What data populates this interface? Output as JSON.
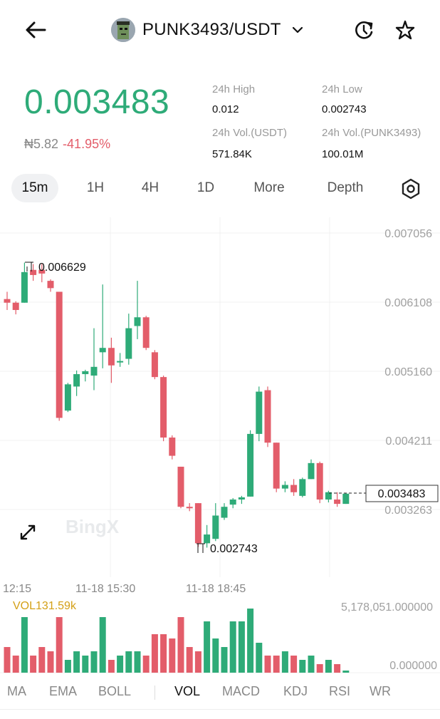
{
  "header": {
    "pair": "PUNK3493/USDT",
    "icons": [
      "back-arrow-icon",
      "avatar",
      "chevron-down-icon",
      "refresh-icon",
      "star-icon"
    ]
  },
  "ticker": {
    "price": "0.003483",
    "fiat": "₦5.82",
    "change": "-41.95%",
    "high_label": "24h High",
    "high": "0.012",
    "low_label": "24h Low",
    "low": "0.002743",
    "vol_usdt_label": "24h Vol.(USDT)",
    "vol_usdt": "571.84K",
    "vol_base_label": "24h Vol.(PUNK3493)",
    "vol_base": "100.01M"
  },
  "tabs": [
    "15m",
    "1H",
    "4H",
    "1D",
    "More",
    "Depth"
  ],
  "active_tab": "15m",
  "chart": {
    "watermark": "BingX",
    "price_labels": [
      "0.007056",
      "0.006108",
      "0.005160",
      "0.004211",
      "0.003263"
    ],
    "current_price": "0.003483",
    "max_label": "0.006629",
    "min_label": "0.002743",
    "x_labels": [
      "12:15",
      "11-18 15:30",
      "11-18 18:45"
    ],
    "vol_label": "VOL131.59k",
    "vol_max": "5,178,051.000000",
    "vol_min": "0.000000"
  },
  "indicators": [
    "MA",
    "EMA",
    "BOLL",
    "VOL",
    "MACD",
    "KDJ",
    "RSI",
    "WR"
  ],
  "active_indicator": "VOL",
  "colors": {
    "up": "#2eab78",
    "down": "#e35d6a",
    "muted": "#888888",
    "vol_label": "#d4a017"
  },
  "chart_data": {
    "type": "candlestick",
    "ylim": [
      0.0027,
      0.00715
    ],
    "candles": [
      {
        "o": 0.00615,
        "h": 0.00625,
        "l": 0.006,
        "c": 0.0061
      },
      {
        "o": 0.0061,
        "h": 0.00612,
        "l": 0.00594,
        "c": 0.006
      },
      {
        "o": 0.0061,
        "h": 0.00665,
        "l": 0.0061,
        "c": 0.00652
      },
      {
        "o": 0.00655,
        "h": 0.00663,
        "l": 0.0064,
        "c": 0.00648
      },
      {
        "o": 0.00655,
        "h": 0.00663,
        "l": 0.00638,
        "c": 0.0065
      },
      {
        "o": 0.0064,
        "h": 0.00642,
        "l": 0.00625,
        "c": 0.0063
      },
      {
        "o": 0.00625,
        "h": 0.00625,
        "l": 0.00448,
        "c": 0.00452
      },
      {
        "o": 0.00462,
        "h": 0.005,
        "l": 0.0046,
        "c": 0.00498
      },
      {
        "o": 0.00495,
        "h": 0.00517,
        "l": 0.00482,
        "c": 0.00512
      },
      {
        "o": 0.00512,
        "h": 0.00518,
        "l": 0.00502,
        "c": 0.00516
      },
      {
        "o": 0.0051,
        "h": 0.00575,
        "l": 0.0049,
        "c": 0.00522
      },
      {
        "o": 0.00542,
        "h": 0.00635,
        "l": 0.0052,
        "c": 0.00548
      },
      {
        "o": 0.00548,
        "h": 0.00562,
        "l": 0.005,
        "c": 0.00524
      },
      {
        "o": 0.00528,
        "h": 0.00541,
        "l": 0.00522,
        "c": 0.0053
      },
      {
        "o": 0.00533,
        "h": 0.00595,
        "l": 0.00525,
        "c": 0.00575
      },
      {
        "o": 0.00578,
        "h": 0.0064,
        "l": 0.0056,
        "c": 0.0059
      },
      {
        "o": 0.0059,
        "h": 0.00592,
        "l": 0.00545,
        "c": 0.00548
      },
      {
        "o": 0.00542,
        "h": 0.00545,
        "l": 0.00505,
        "c": 0.00508
      },
      {
        "o": 0.00508,
        "h": 0.0051,
        "l": 0.0042,
        "c": 0.00425
      },
      {
        "o": 0.00425,
        "h": 0.00428,
        "l": 0.00395,
        "c": 0.004
      },
      {
        "o": 0.00385,
        "h": 0.00385,
        "l": 0.00328,
        "c": 0.0033
      },
      {
        "o": 0.0033,
        "h": 0.00335,
        "l": 0.00324,
        "c": 0.00328
      },
      {
        "o": 0.00335,
        "h": 0.00335,
        "l": 0.00275,
        "c": 0.0028
      },
      {
        "o": 0.0028,
        "h": 0.00305,
        "l": 0.00274,
        "c": 0.00292
      },
      {
        "o": 0.00286,
        "h": 0.00335,
        "l": 0.00283,
        "c": 0.00318
      },
      {
        "o": 0.00315,
        "h": 0.00335,
        "l": 0.00312,
        "c": 0.0033
      },
      {
        "o": 0.00333,
        "h": 0.00342,
        "l": 0.00328,
        "c": 0.0034
      },
      {
        "o": 0.0034,
        "h": 0.00345,
        "l": 0.00334,
        "c": 0.00343
      },
      {
        "o": 0.00344,
        "h": 0.00435,
        "l": 0.00344,
        "c": 0.0043
      },
      {
        "o": 0.0043,
        "h": 0.00495,
        "l": 0.0042,
        "c": 0.00488
      },
      {
        "o": 0.0049,
        "h": 0.00495,
        "l": 0.00412,
        "c": 0.00418
      },
      {
        "o": 0.00418,
        "h": 0.00418,
        "l": 0.0035,
        "c": 0.00355
      },
      {
        "o": 0.00355,
        "h": 0.00365,
        "l": 0.0035,
        "c": 0.0036
      },
      {
        "o": 0.0036,
        "h": 0.00368,
        "l": 0.00345,
        "c": 0.0035
      },
      {
        "o": 0.00345,
        "h": 0.0037,
        "l": 0.00343,
        "c": 0.00368
      },
      {
        "o": 0.00368,
        "h": 0.00395,
        "l": 0.00368,
        "c": 0.0039
      },
      {
        "o": 0.0039,
        "h": 0.00392,
        "l": 0.00335,
        "c": 0.0034
      },
      {
        "o": 0.0034,
        "h": 0.00352,
        "l": 0.00336,
        "c": 0.0035
      },
      {
        "o": 0.0034,
        "h": 0.0035,
        "l": 0.0033,
        "c": 0.00334
      },
      {
        "o": 0.00334,
        "h": 0.00349,
        "l": 0.00334,
        "c": 0.00348
      }
    ],
    "volume": [
      0.6,
      0.4,
      1.3,
      0.4,
      0.6,
      0.5,
      1.3,
      0.3,
      0.5,
      0.4,
      0.5,
      1.3,
      0.3,
      0.4,
      0.5,
      0.5,
      0.4,
      0.9,
      0.9,
      0.8,
      1.3,
      0.6,
      0.5,
      1.2,
      0.8,
      0.6,
      1.2,
      1.2,
      1.5,
      0.7,
      0.4,
      0.4,
      0.5,
      0.4,
      0.3,
      0.4,
      0.2,
      0.3,
      0.2,
      0.05
    ]
  }
}
